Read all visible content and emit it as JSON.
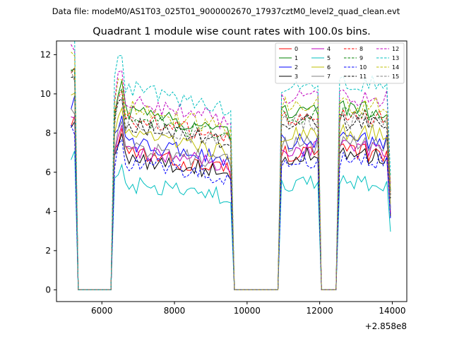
{
  "chart_data": {
    "type": "line",
    "suptitle": "Data file: modeM0/AS1T03_025T01_9000002670_17937cztM0_level2_quad_clean.evt",
    "title": "Quadrant 1 module wise count rates with 100.0s bins.",
    "xlabel": "",
    "ylabel": "",
    "x_offset_label": "+2.858e8",
    "xlim": [
      4750,
      14400
    ],
    "ylim": [
      -0.6,
      12.7
    ],
    "xticks": [
      6000,
      8000,
      10000,
      12000,
      14000
    ],
    "yticks": [
      0,
      2,
      4,
      6,
      8,
      10,
      12
    ],
    "legend_position": "top-right",
    "series": [
      {
        "name": "0",
        "color": "#ff0000",
        "dash": false,
        "level": 7.0
      },
      {
        "name": "1",
        "color": "#008000",
        "dash": false,
        "level": 9.2
      },
      {
        "name": "2",
        "color": "#0000ff",
        "dash": false,
        "level": 7.6
      },
      {
        "name": "3",
        "color": "#000000",
        "dash": false,
        "level": 6.8
      },
      {
        "name": "4",
        "color": "#bf00bf",
        "dash": false,
        "level": 7.2
      },
      {
        "name": "5",
        "color": "#00bfbf",
        "dash": false,
        "level": 5.4
      },
      {
        "name": "6",
        "color": "#bfbf00",
        "dash": false,
        "level": 8.0
      },
      {
        "name": "7",
        "color": "#808080",
        "dash": false,
        "level": 7.4
      },
      {
        "name": "8",
        "color": "#ff0000",
        "dash": true,
        "level": 8.8
      },
      {
        "name": "9",
        "color": "#008000",
        "dash": true,
        "level": 8.9
      },
      {
        "name": "10",
        "color": "#0000ff",
        "dash": true,
        "level": 6.6
      },
      {
        "name": "11",
        "color": "#000000",
        "dash": true,
        "level": 8.5
      },
      {
        "name": "12",
        "color": "#bf00bf",
        "dash": true,
        "level": 9.8
      },
      {
        "name": "13",
        "color": "#00bfbf",
        "dash": true,
        "level": 10.5
      },
      {
        "name": "14",
        "color": "#bfbf00",
        "dash": true,
        "level": 9.4
      },
      {
        "name": "15",
        "color": "#808080",
        "dash": true,
        "level": 8.6
      }
    ],
    "bin_seconds": 100,
    "x_start": 5150,
    "x_end": 13950,
    "zero_gaps": [
      [
        5350,
        6250
      ],
      [
        9650,
        10850
      ],
      [
        12000,
        12450
      ]
    ]
  }
}
